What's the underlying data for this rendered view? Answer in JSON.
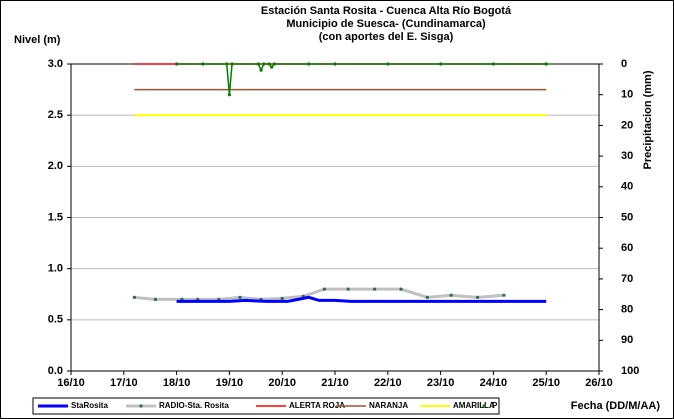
{
  "chart_data": {
    "type": "line",
    "title": [
      "Estación Santa Rosita - Cuenca Alta Río Bogotá",
      "Municipio de Suesca- (Cundinamarca)",
      "(con aportes del  E. Sisga)"
    ],
    "ylabel": "Nivel (m)",
    "y2label": "Precipitacion (mm)",
    "xlabel": "Fecha (DD/M/AA)",
    "xlim": [
      16,
      26
    ],
    "xticks": [
      {
        "value": 16,
        "label": "16/10"
      },
      {
        "value": 17,
        "label": "17/10"
      },
      {
        "value": 18,
        "label": "18/10"
      },
      {
        "value": 19,
        "label": "19/10"
      },
      {
        "value": 20,
        "label": "20/10"
      },
      {
        "value": 21,
        "label": "21/10"
      },
      {
        "value": 22,
        "label": "22/10"
      },
      {
        "value": 23,
        "label": "23/10"
      },
      {
        "value": 24,
        "label": "24/10"
      },
      {
        "value": 25,
        "label": "25/10"
      },
      {
        "value": 26,
        "label": "26/10"
      }
    ],
    "ylim": [
      0,
      3
    ],
    "yticks": [
      {
        "value": 0,
        "label": "0.0"
      },
      {
        "value": 0.5,
        "label": "0.5"
      },
      {
        "value": 1,
        "label": "1.0"
      },
      {
        "value": 1.5,
        "label": "1.5"
      },
      {
        "value": 2,
        "label": "2.0"
      },
      {
        "value": 2.5,
        "label": "2.5"
      },
      {
        "value": 3,
        "label": "3.0"
      }
    ],
    "y2lim": [
      100,
      0
    ],
    "y2_inverted": true,
    "y2ticks": [
      0,
      10,
      20,
      30,
      40,
      50,
      60,
      70,
      80,
      90,
      100
    ],
    "grid": true,
    "legend": "bottom",
    "series": [
      {
        "name": "StaRosita",
        "color": "#0000ff",
        "width": 3,
        "x": [
          18,
          19,
          19.3,
          19.7,
          20.1,
          20.3,
          20.5,
          20.7,
          21,
          21.3,
          22,
          23,
          24,
          25
        ],
        "values": [
          0.68,
          0.68,
          0.69,
          0.68,
          0.68,
          0.7,
          0.72,
          0.69,
          0.69,
          0.68,
          0.68,
          0.68,
          0.68,
          0.68
        ]
      },
      {
        "name": "RADIO-Sta. Rosita",
        "color": "#c0c0c0",
        "marker": "#2e6b4f",
        "width": 3,
        "x": [
          17.2,
          17.6,
          18.1,
          18.4,
          18.8,
          19.2,
          19.6,
          20,
          20.4,
          20.8,
          21.25,
          21.75,
          22.25,
          22.75,
          23.2,
          23.7,
          24.2
        ],
        "values": [
          0.72,
          0.7,
          0.7,
          0.7,
          0.7,
          0.72,
          0.7,
          0.71,
          0.73,
          0.8,
          0.8,
          0.8,
          0.8,
          0.72,
          0.74,
          0.72,
          0.74
        ]
      },
      {
        "name": "ALERTA ROJA",
        "color": "#ff0000",
        "width": 1.5,
        "x": [
          17.2,
          25
        ],
        "values": [
          3,
          3
        ]
      },
      {
        "name": "NARANJA",
        "color": "#a0522d",
        "width": 1.5,
        "x": [
          17.2,
          25
        ],
        "values": [
          2.75,
          2.75
        ]
      },
      {
        "name": "AMARILLA",
        "color": "#ffff00",
        "width": 2,
        "x": [
          17.2,
          25
        ],
        "values": [
          2.5,
          2.5
        ]
      },
      {
        "name": "P",
        "color": "#008000",
        "marker": "#008000",
        "width": 1.5,
        "axis": "y2",
        "x": [
          18,
          18.5,
          18.95,
          19,
          19.05,
          19.55,
          19.6,
          19.65,
          19.75,
          19.8,
          19.85,
          20.5,
          21,
          22,
          23,
          24,
          25
        ],
        "values": [
          0,
          0,
          0,
          10,
          0,
          0,
          2,
          0,
          0,
          1,
          0,
          0,
          0,
          0,
          0,
          0,
          0
        ]
      }
    ]
  }
}
